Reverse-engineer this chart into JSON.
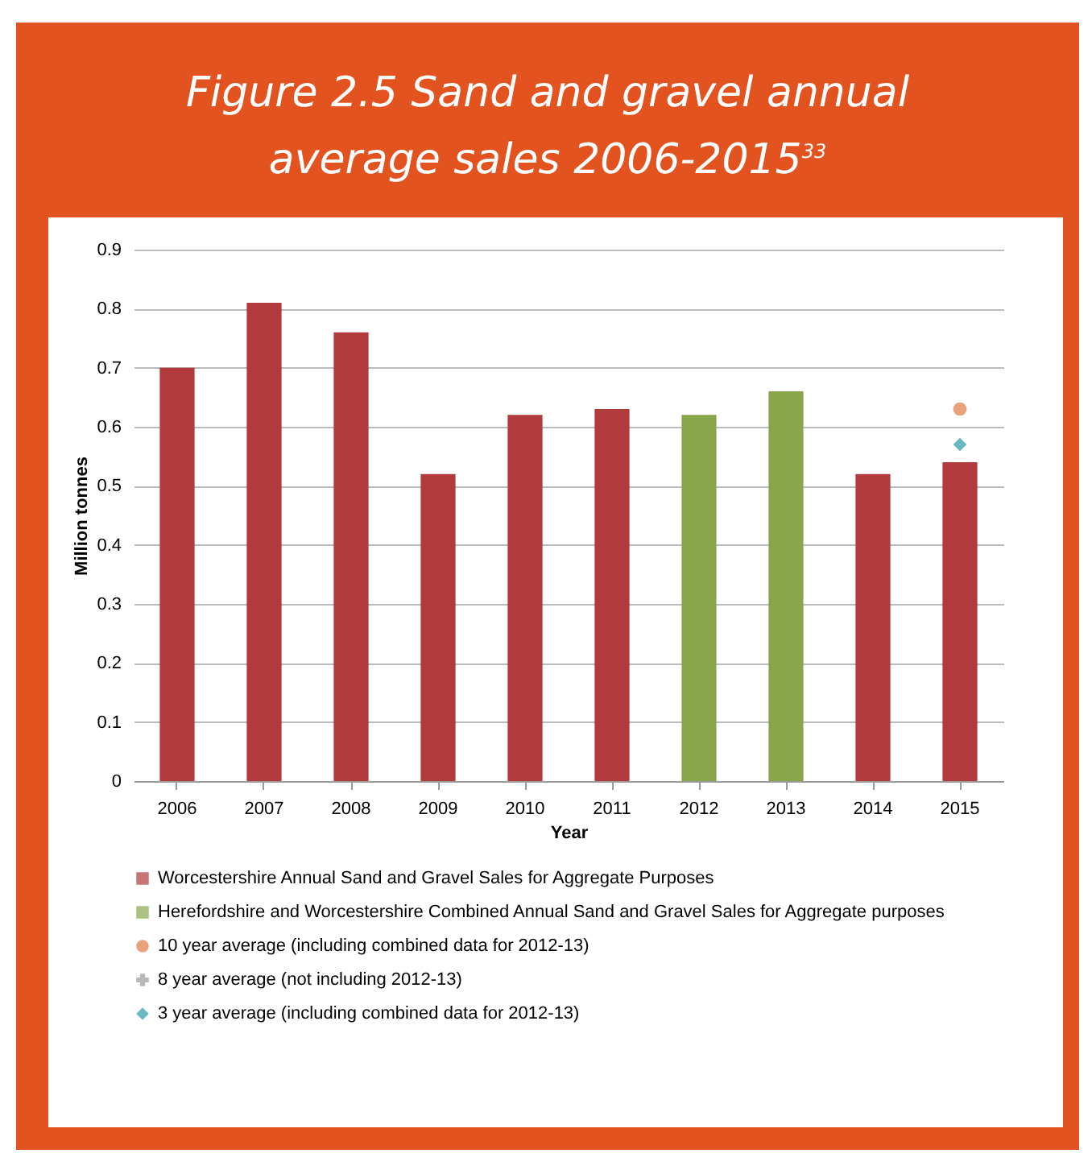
{
  "chart_data": {
    "type": "bar",
    "title": "Figure 2.5 Sand and gravel annual average sales 2006-2015$^{33}$",
    "xlabel": "Year",
    "ylabel": "Million tonnes",
    "categories": [
      "2006",
      "2007",
      "2008",
      "2009",
      "2010",
      "2011",
      "2012",
      "2013",
      "2014",
      "2015"
    ],
    "series": [
      {
        "name": "Worcestershire Annual Sand and Gravel Sales for Aggregate Purposes",
        "color": "#b03a3c",
        "values": [
          0.7,
          0.81,
          0.76,
          0.52,
          0.62,
          0.63,
          null,
          null,
          0.52,
          0.54
        ]
      },
      {
        "name": "Herefordshire and Worcestershire Combined Annual Sand and Gravel Sales for Aggregate purposes",
        "color": "#8aa64a",
        "values": [
          null,
          null,
          null,
          null,
          null,
          null,
          0.62,
          0.66,
          null,
          null
        ]
      },
      {
        "name": "10 year average (including combined data for 2012-13)",
        "type": "scatter",
        "marker": "circle",
        "color": "#e07b45",
        "values": [
          null,
          null,
          null,
          null,
          null,
          null,
          null,
          null,
          null,
          0.63
        ]
      },
      {
        "name": "8 year average (not including 2012-13)",
        "type": "scatter",
        "marker": "cross",
        "color": "#9a9a9a",
        "values": [
          null,
          null,
          null,
          null,
          null,
          null,
          null,
          null,
          null,
          null
        ]
      },
      {
        "name": "3 year average (including combined data for 2012-13)",
        "type": "scatter",
        "marker": "diamond",
        "color": "#2a9aa8",
        "values": [
          null,
          null,
          null,
          null,
          null,
          null,
          null,
          null,
          null,
          0.57
        ]
      }
    ],
    "ylim": [
      0,
      0.9
    ],
    "yticks": [
      0,
      0.1,
      0.2,
      0.3,
      0.4,
      0.5,
      0.6,
      0.7,
      0.8,
      0.9
    ],
    "grid": "y",
    "legend": "bottom"
  }
}
